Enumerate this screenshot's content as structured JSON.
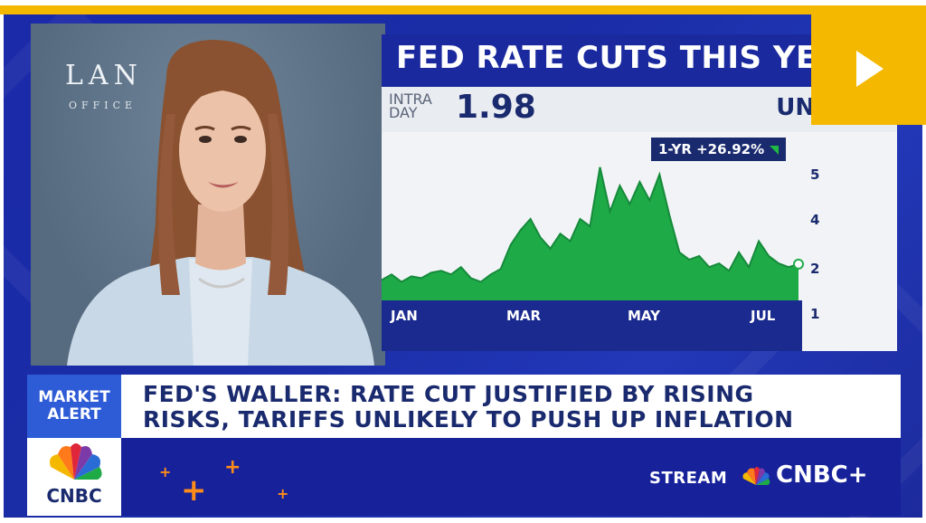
{
  "video": {
    "backdrop_logo": "LAN",
    "backdrop_sub": "OFFICE"
  },
  "headline": {
    "title": "FED RATE CUTS THIS YE"
  },
  "quote": {
    "intraday_line1": "INTRA",
    "intraday_line2": "DAY",
    "price": "1.98",
    "change": "UNCH"
  },
  "chart_data": {
    "type": "area",
    "badge": "1-YR  +26.92%",
    "x_labels": [
      "JAN",
      "MAR",
      "MAY",
      "JUL"
    ],
    "y_ticks": [
      "5",
      "4",
      "2",
      "1"
    ],
    "ylim": [
      1,
      5.3
    ],
    "values": [
      1.55,
      1.7,
      1.5,
      1.65,
      1.6,
      1.75,
      1.8,
      1.7,
      1.9,
      1.6,
      1.5,
      1.7,
      1.85,
      2.5,
      2.9,
      3.2,
      2.7,
      2.4,
      2.8,
      2.6,
      3.2,
      3.0,
      4.6,
      3.4,
      4.1,
      3.6,
      4.2,
      3.7,
      4.4,
      3.3,
      2.3,
      2.1,
      2.2,
      1.9,
      2.0,
      1.8,
      2.3,
      1.9,
      2.6,
      2.2,
      2.0,
      1.9,
      1.98
    ],
    "color": "#1faa48",
    "grid": false
  },
  "play_button": {
    "label": "Play",
    "color": "#f5b800"
  },
  "alert": {
    "tag_line1": "MARKET",
    "tag_line2": "ALERT",
    "line1": "FED'S WALLER: RATE CUT JUSTIFIED BY RISING",
    "line2": "RISKS, TARIFFS UNLIKELY TO PUSH UP INFLATION"
  },
  "network": {
    "logo_word": "CNBC",
    "stream_label": "STREAM",
    "cnbc_plus": "CNBC+"
  },
  "colors": {
    "frame_blue": "#1b2aa8",
    "accent_yellow": "#f5b800",
    "navy": "#1a2a6e",
    "alert_blue": "#2e5bd6"
  }
}
